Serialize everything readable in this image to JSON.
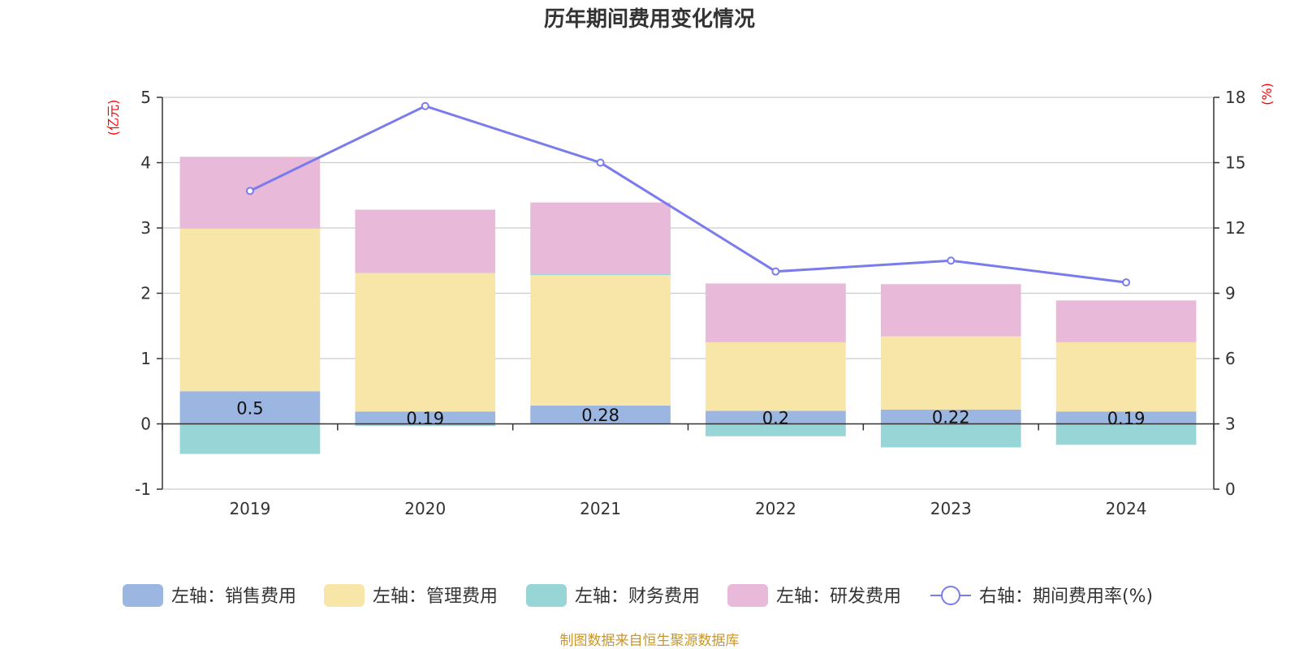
{
  "chart_data": {
    "type": "bar",
    "stacked": true,
    "title": "历年期间费用变化情况",
    "categories": [
      "2019",
      "2020",
      "2021",
      "2022",
      "2023",
      "2024"
    ],
    "left_axis": {
      "unit": "(亿元)",
      "ylim": [
        -1,
        5
      ],
      "ticks": [
        "5",
        "4",
        "3",
        "2",
        "1",
        "0",
        "-1"
      ]
    },
    "right_axis": {
      "unit": "(%)",
      "ylim": [
        0,
        18
      ],
      "ticks": [
        "18",
        "15",
        "12",
        "9",
        "6",
        "3",
        "0"
      ]
    },
    "series": [
      {
        "name": "左轴：销售费用",
        "axis": "left",
        "color": "#9bb6e1",
        "values": [
          0.5,
          0.19,
          0.28,
          0.2,
          0.22,
          0.19
        ],
        "labels": [
          "0.5",
          "0.19",
          "0.28",
          "0.2",
          "0.22",
          "0.19"
        ]
      },
      {
        "name": "左轴：管理费用",
        "axis": "left",
        "color": "#f7e6a7",
        "values": [
          2.49,
          2.12,
          2.0,
          1.05,
          1.12,
          1.06
        ]
      },
      {
        "name": "左轴：财务费用",
        "axis": "left",
        "color": "#98d5d6",
        "values": [
          -0.46,
          -0.03,
          0.02,
          -0.19,
          -0.36,
          -0.32
        ]
      },
      {
        "name": "左轴：研发费用",
        "axis": "left",
        "color": "#e8b9d9",
        "values": [
          1.1,
          0.97,
          1.09,
          0.9,
          0.8,
          0.64
        ]
      },
      {
        "name": "右轴：期间费用率(%)",
        "axis": "right",
        "type": "line",
        "color": "#7b7cec",
        "values": [
          13.7,
          17.6,
          15.0,
          10.0,
          10.5,
          9.5
        ]
      }
    ],
    "legend": "bottom-center"
  },
  "source_note": "制图数据来自恒生聚源数据库"
}
